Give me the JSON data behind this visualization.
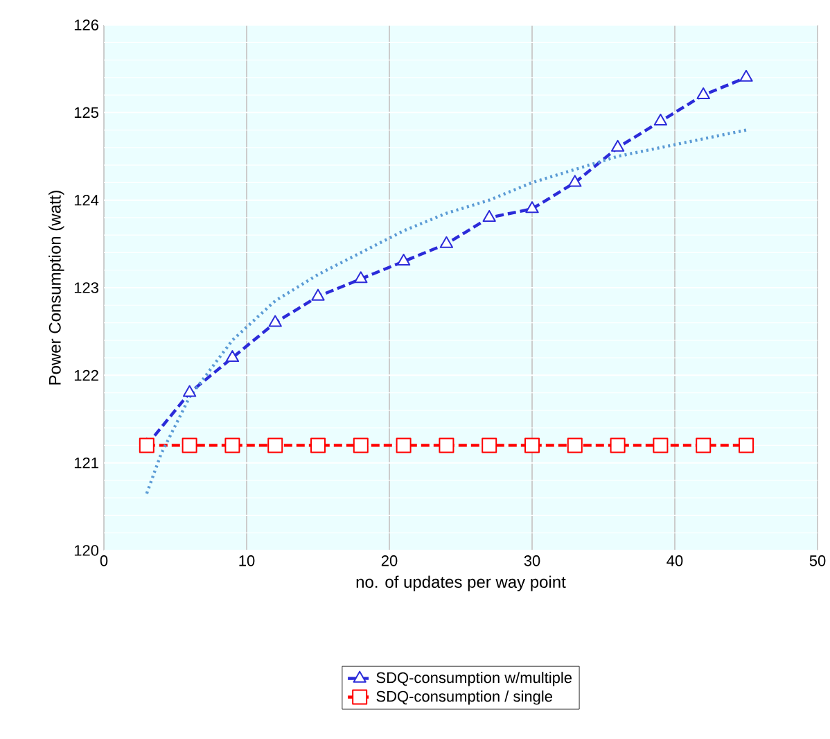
{
  "chart_data": {
    "type": "line",
    "xlabel": "no. of updates per way point",
    "ylabel": "Power Consumption (watt)",
    "x": [
      3,
      6,
      9,
      12,
      15,
      18,
      21,
      24,
      27,
      30,
      33,
      36,
      39,
      42,
      45
    ],
    "series": [
      {
        "name": "SDQ-consumption w/multiple",
        "color": "#2b2bd9",
        "marker": "triangle",
        "line_style": "dashed",
        "values": [
          121.2,
          121.8,
          122.2,
          122.6,
          122.9,
          123.1,
          123.3,
          123.5,
          123.8,
          123.9,
          124.2,
          124.6,
          124.9,
          125.2,
          125.4
        ]
      },
      {
        "name": "SDQ-consumption / single",
        "color": "#ff0000",
        "marker": "square",
        "line_style": "dashed",
        "values": [
          121.2,
          121.2,
          121.2,
          121.2,
          121.2,
          121.2,
          121.2,
          121.2,
          121.2,
          121.2,
          121.2,
          121.2,
          121.2,
          121.2,
          121.2
        ]
      },
      {
        "color": "#5b9bd5",
        "marker": "none",
        "line_style": "dotted",
        "x": [
          3,
          4,
          6,
          9,
          12,
          15,
          18,
          21,
          24,
          27,
          30,
          33,
          36,
          39,
          42,
          45
        ],
        "values": [
          120.65,
          121.1,
          121.75,
          122.4,
          122.85,
          123.15,
          123.4,
          123.65,
          123.85,
          124.0,
          124.2,
          124.35,
          124.5,
          124.6,
          124.7,
          124.8
        ]
      }
    ],
    "xlim": [
      0,
      50
    ],
    "ylim": [
      120,
      126
    ],
    "xticks": [
      0,
      10,
      20,
      30,
      40,
      50
    ],
    "yticks": [
      120,
      121,
      122,
      123,
      124,
      125,
      126
    ],
    "grid": true,
    "legend": "bottom"
  }
}
